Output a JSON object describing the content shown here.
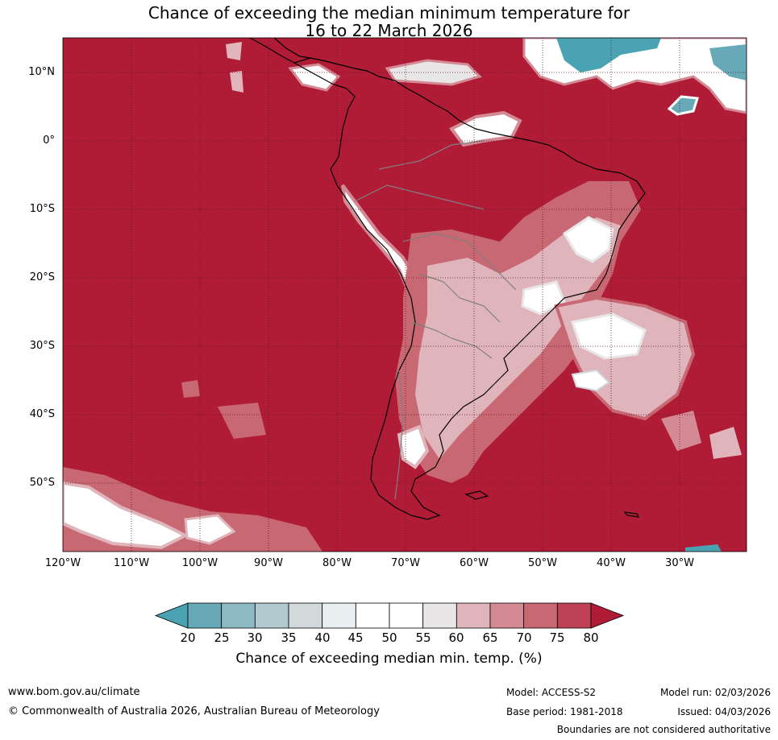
{
  "title": {
    "line1": "Chance of exceeding the median minimum temperature for",
    "line2": "16 to 22 March 2026"
  },
  "map": {
    "lat_labels": [
      "10°N",
      "0°",
      "10°S",
      "20°S",
      "30°S",
      "40°S",
      "50°S"
    ],
    "lon_labels": [
      "120°W",
      "110°W",
      "100°W",
      "90°W",
      "80°W",
      "70°W",
      "60°W",
      "50°W",
      "40°W",
      "30°W"
    ],
    "background_color": "#b01c36"
  },
  "colorbar": {
    "ticks": [
      "20",
      "25",
      "30",
      "35",
      "40",
      "45",
      "50",
      "55",
      "60",
      "65",
      "70",
      "75",
      "80"
    ],
    "colors": [
      "#67a9b6",
      "#8db9c5",
      "#b0cad0",
      "#d1d9db",
      "#e9eff1",
      "#ffffff",
      "#ffffff",
      "#e9e6e8",
      "#dfb4bb",
      "#d38a94",
      "#c76873",
      "#bd4255"
    ],
    "under_color": "#4aa3b2",
    "over_color": "#b01c36",
    "label": "Chance of exceeding median min. temp. (%)"
  },
  "footer": {
    "website": "www.bom.gov.au/climate",
    "copyright": "© Commonwealth of Australia 2026, Australian Bureau of Meteorology",
    "model": "Model: ACCESS-S2",
    "base_period": "Base period: 1981-2018",
    "model_run": "Model run: 02/03/2026",
    "issued": "Issued: 04/03/2026",
    "disclaimer": "Boundaries are not considered authoritative"
  }
}
